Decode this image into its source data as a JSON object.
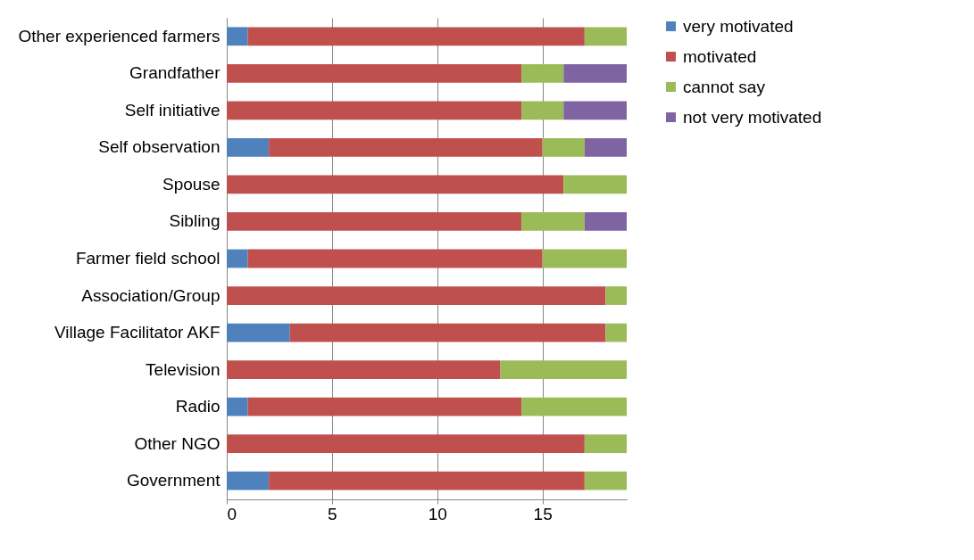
{
  "chart_data": {
    "type": "bar",
    "orientation": "horizontal",
    "stacked": true,
    "categories": [
      "Other experienced farmers",
      "Grandfather",
      "Self initiative",
      "Self observation",
      "Spouse",
      "Sibling",
      "Farmer field school",
      "Association/Group",
      "Village Facilitator AKF",
      "Television",
      "Radio",
      "Other NGO",
      "Government"
    ],
    "series": [
      {
        "name": "very motivated",
        "color": "#4f81bd",
        "values": [
          1,
          0,
          0,
          2,
          0,
          0,
          1,
          0,
          3,
          0,
          1,
          0,
          2
        ]
      },
      {
        "name": "motivated",
        "color": "#c0504d",
        "values": [
          16,
          14,
          14,
          13,
          16,
          14,
          14,
          18,
          15,
          13,
          13,
          17,
          15
        ]
      },
      {
        "name": "cannot say",
        "color": "#9bbb59",
        "values": [
          2,
          2,
          2,
          2,
          3,
          3,
          4,
          1,
          1,
          6,
          5,
          2,
          2
        ]
      },
      {
        "name": "not very motivated",
        "color": "#8064a2",
        "values": [
          0,
          3,
          3,
          2,
          0,
          2,
          0,
          0,
          0,
          0,
          0,
          0,
          0
        ]
      }
    ],
    "xlim": [
      0,
      19
    ],
    "xticks": [
      0,
      5,
      10,
      15
    ],
    "grid": "x",
    "legend": "right"
  }
}
